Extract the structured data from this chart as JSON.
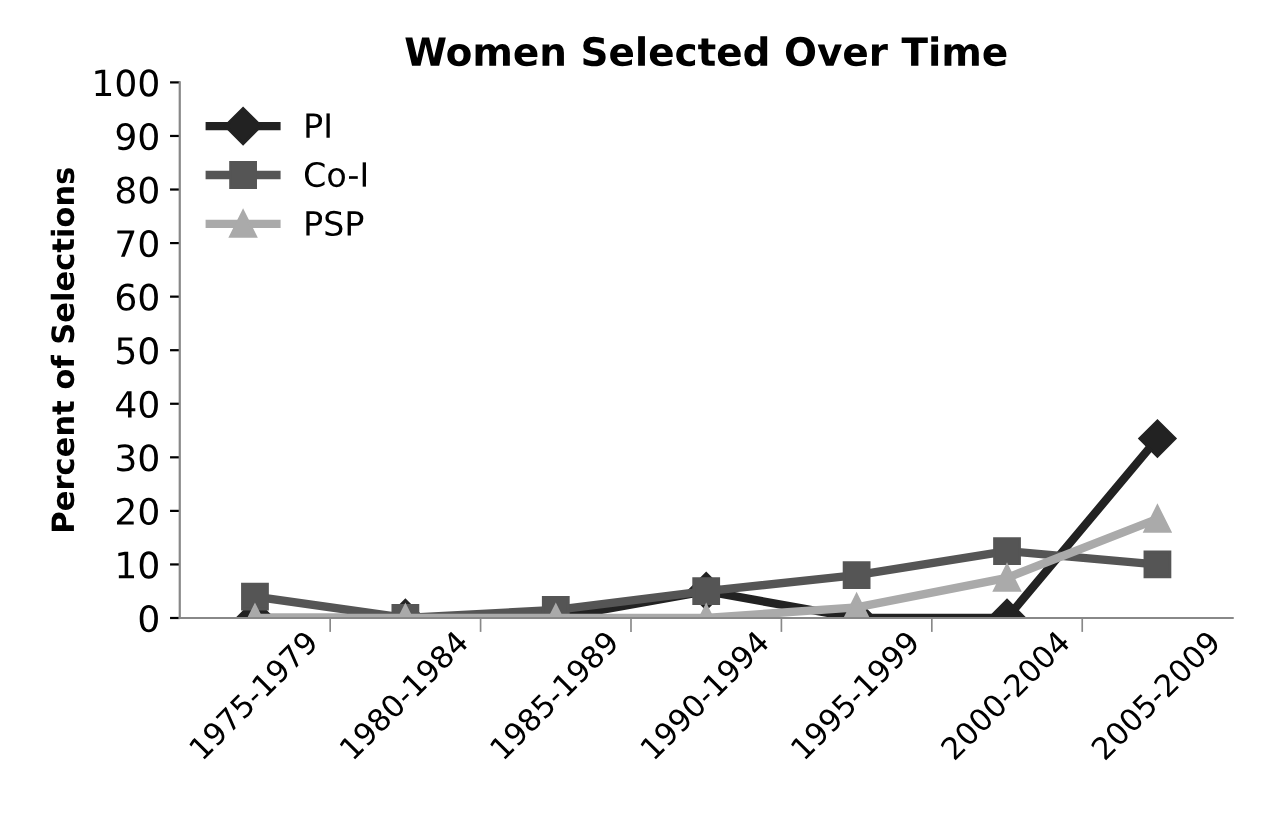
{
  "chart_data": {
    "type": "line",
    "title": "Women Selected Over Time",
    "ylabel": "Percent of Selections",
    "categories": [
      "1975-1979",
      "1980-1984",
      "1985-1989",
      "1990-1994",
      "1995-1999",
      "2000-2004",
      "2005-2009"
    ],
    "series": [
      {
        "name": "PI",
        "color": "#222222",
        "marker": "diamond",
        "values": [
          0,
          0,
          0,
          5,
          0,
          0,
          33.5
        ]
      },
      {
        "name": "Co-I",
        "color": "#555555",
        "marker": "square",
        "values": [
          4,
          0,
          1.5,
          5,
          8,
          12.5,
          10
        ]
      },
      {
        "name": "PSP",
        "color": "#aaaaaa",
        "marker": "triangle",
        "values": [
          0,
          0,
          0,
          0,
          2,
          7.5,
          18.5
        ]
      }
    ],
    "ylim": [
      0,
      100
    ],
    "yticks": [
      0,
      10,
      20,
      30,
      40,
      50,
      60,
      70,
      80,
      90,
      100
    ],
    "grid": false,
    "legend": "top left"
  }
}
